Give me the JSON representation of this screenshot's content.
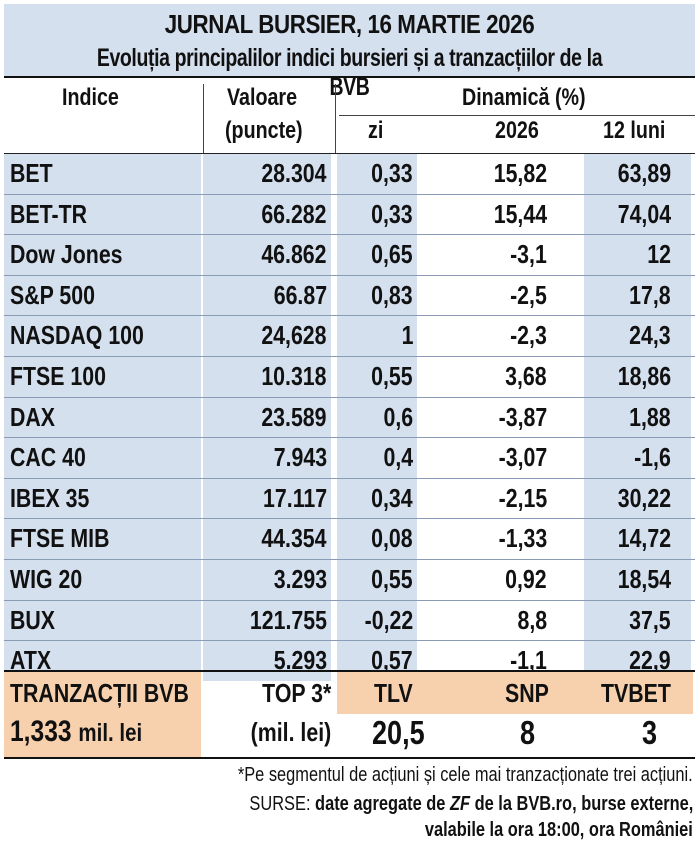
{
  "title": "JURNAL BURSIER, 16 MARTIE 2026",
  "subtitle": "Evoluția principalilor indici bursieri și a tranzacțiilor de la BVB",
  "headers": {
    "indice": "Indice",
    "valoare": "Valoare",
    "valoare_unit": "(puncte)",
    "dinamica": "Dinamică (%)",
    "zi": "zi",
    "year": "2026",
    "months": "12 luni"
  },
  "rows": [
    {
      "name": "BET",
      "value": "28.304",
      "zi": "0,33",
      "year": "15,82",
      "months": "63,89"
    },
    {
      "name": "BET-TR",
      "value": "66.282",
      "zi": "0,33",
      "year": "15,44",
      "months": "74,04"
    },
    {
      "name": "Dow Jones",
      "value": "46.862",
      "zi": "0,65",
      "year": "-3,1",
      "months": "12"
    },
    {
      "name": "S&P 500",
      "value": "66.87",
      "zi": "0,83",
      "year": "-2,5",
      "months": "17,8"
    },
    {
      "name": "NASDAQ 100",
      "value": "24,628",
      "zi": "1",
      "year": "-2,3",
      "months": "24,3"
    },
    {
      "name": "FTSE 100",
      "value": "10.318",
      "zi": "0,55",
      "year": "3,68",
      "months": "18,86"
    },
    {
      "name": "DAX",
      "value": "23.589",
      "zi": "0,6",
      "year": "-3,87",
      "months": "1,88"
    },
    {
      "name": "CAC 40",
      "value": "7.943",
      "zi": "0,4",
      "year": "-3,07",
      "months": "-1,6"
    },
    {
      "name": "IBEX 35",
      "value": "17.117",
      "zi": "0,34",
      "year": "-2,15",
      "months": "30,22"
    },
    {
      "name": "FTSE MIB",
      "value": "44.354",
      "zi": "0,08",
      "year": "-1,33",
      "months": "14,72"
    },
    {
      "name": "WIG 20",
      "value": "3.293",
      "zi": "0,55",
      "year": "0,92",
      "months": "18,54"
    },
    {
      "name": "BUX",
      "value": "121.755",
      "zi": "-0,22",
      "year": "8,8",
      "months": "37,5"
    },
    {
      "name": "ATX",
      "value": "5.293",
      "zi": "0,57",
      "year": "-1,1",
      "months": "22,9"
    }
  ],
  "bvb": {
    "label": "TRANZACȚII BVB",
    "amount": "1,333",
    "amount_unit": "mil. lei",
    "top3_label": "TOP 3*",
    "top3_unit": "(mil. lei)",
    "stocks": [
      {
        "ticker": "TLV",
        "value": "20,5"
      },
      {
        "ticker": "SNP",
        "value": "8"
      },
      {
        "ticker": "TVBET",
        "value": "3"
      }
    ]
  },
  "footnote": "*Pe segmentul de acțiuni și cele mai tranzacționate trei acțiuni.",
  "sources_label": "SURSE:",
  "sources_part1": "date agregate de",
  "sources_zf": "ZF",
  "sources_part2": "de la BVB.ro, burse externe,",
  "sources_line2": "valabile la ora 18:00, ora României",
  "colors": {
    "blue_fill": "#d5e0ef",
    "orange_fill": "#f7d0ae"
  }
}
